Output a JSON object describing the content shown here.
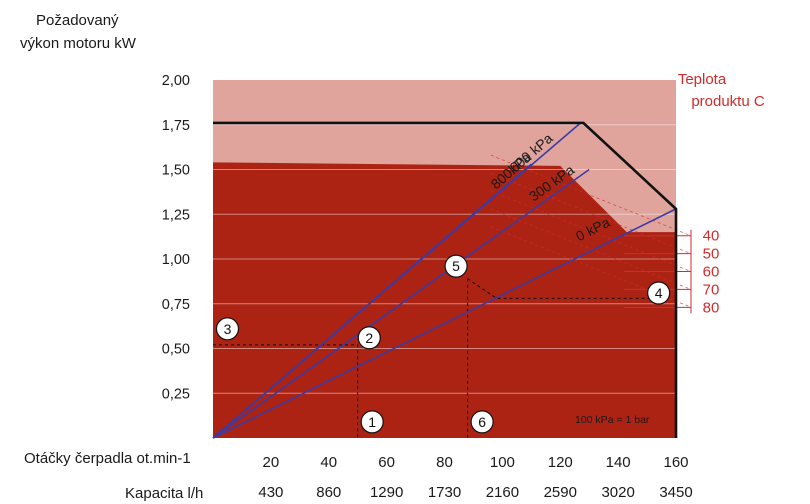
{
  "chart_data": {
    "type": "line",
    "title": "",
    "ylabel_lines": [
      "Požadovaný",
      "výkon motoru kW"
    ],
    "ylim": [
      0,
      2
    ],
    "y_ticks": [
      "2,00",
      "1,75",
      "1,50",
      "1,25",
      "1,00",
      "0,75",
      "0,50",
      "0,25"
    ],
    "y_tick_values": [
      2.0,
      1.75,
      1.5,
      1.25,
      1.0,
      0.75,
      0.5,
      0.25
    ],
    "xlim": [
      0,
      160
    ],
    "x_axis_rpm_label": "Otáčky čerpadla ot.min-1",
    "x_rpm_ticks": [
      "20",
      "40",
      "60",
      "80",
      "100",
      "120",
      "140",
      "160"
    ],
    "x_rpm_values": [
      20,
      40,
      60,
      80,
      100,
      120,
      140,
      160
    ],
    "x_axis_capacity_label": "Kapacita l/h",
    "x_capacity_ticks": [
      "430",
      "860",
      "1290",
      "1730",
      "2160",
      "2590",
      "3020",
      "3450"
    ],
    "series": [
      {
        "name": "800kPa",
        "x": [
          0,
          110
        ],
        "y": [
          0,
          1.53
        ]
      },
      {
        "name": "600 kPa",
        "x": [
          0,
          127
        ],
        "y": [
          0,
          1.76
        ]
      },
      {
        "name": "300 kPa",
        "x": [
          0,
          130
        ],
        "y": [
          0,
          1.5
        ]
      },
      {
        "name": "0 kPa",
        "x": [
          0,
          160
        ],
        "y": [
          0,
          1.28
        ]
      }
    ],
    "limit_outline": {
      "x": [
        0,
        128,
        160,
        160
      ],
      "y": [
        1.76,
        1.76,
        1.28,
        0
      ]
    },
    "temperature_region": {
      "x": [
        0,
        120,
        143,
        160,
        160,
        0
      ],
      "y": [
        1.54,
        1.52,
        1.15,
        1.15,
        0,
        0
      ]
    },
    "temperature_label_lines": [
      "Teplota",
      "produktu C"
    ],
    "temperature_ticks": [
      "40",
      "50",
      "60",
      "70",
      "80"
    ],
    "temperature_tick_y": [
      1.13,
      1.03,
      0.93,
      0.83,
      0.73
    ],
    "note": "100 kPa = 1 bar",
    "markers": [
      {
        "label": "1",
        "x": 55,
        "y": 0.09
      },
      {
        "label": "2",
        "x": 54,
        "y": 0.56
      },
      {
        "label": "3",
        "x": 5,
        "y": 0.61
      },
      {
        "label": "4",
        "x": 154,
        "y": 0.81
      },
      {
        "label": "5",
        "x": 84,
        "y": 0.96
      },
      {
        "label": "6",
        "x": 93,
        "y": 0.09
      }
    ],
    "guides": [
      {
        "x": [
          0,
          50,
          50
        ],
        "y": [
          0.52,
          0.52,
          0
        ]
      },
      {
        "x": [
          88,
          88
        ],
        "y": [
          0.89,
          0
        ]
      },
      {
        "x": [
          88,
          98,
          158
        ],
        "y": [
          0.89,
          0.78,
          0.78
        ]
      }
    ],
    "colors": {
      "background": "#e0a49c",
      "region": "#ac2314",
      "outline": "#111111",
      "pressure_lines": "#3b3ba6",
      "temperature": "#d42a2a"
    }
  }
}
